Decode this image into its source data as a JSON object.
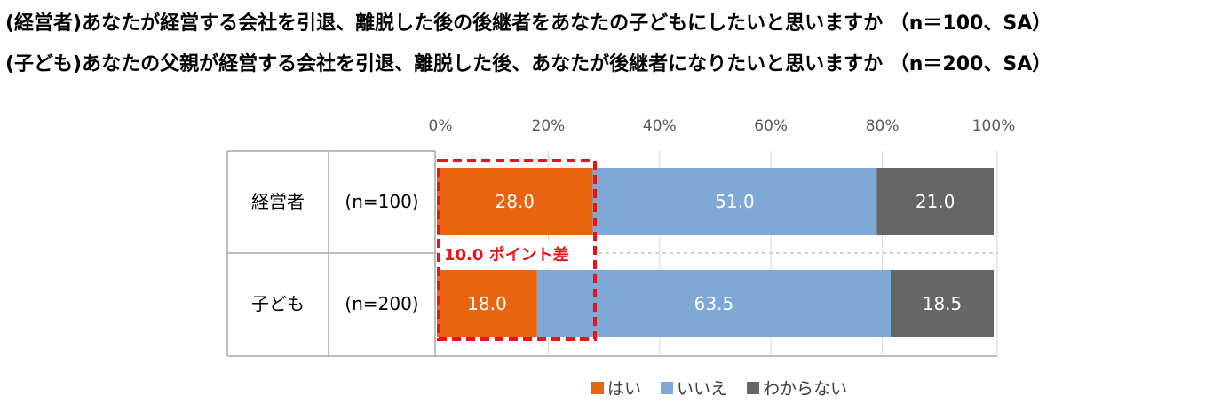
{
  "titles": [
    "(経営者)あなたが経営する会社を引退、離脱した後の後継者をあなたの子どもにしたいと思いますか （n＝100、SA）",
    "(子ども)あなたの父親が経営する会社を引退、離脱した後、あなたが後継者になりたいと思いますか （n＝200、SA）"
  ],
  "annotation": "10.0 ポイント差",
  "colors": {
    "はい": "#e8640f",
    "いいえ": "#7ea9d6",
    "わからない": "#666666",
    "annotation": "#e8141a"
  },
  "chart_data": {
    "type": "bar",
    "orientation": "horizontal",
    "stacked": true,
    "percent": true,
    "xlim": [
      0,
      100
    ],
    "xticks": [
      "0%",
      "20%",
      "40%",
      "60%",
      "80%",
      "100%"
    ],
    "categories": [
      {
        "label": "経営者",
        "n": "(n=100)"
      },
      {
        "label": "子ども",
        "n": "(n=200)"
      }
    ],
    "series": [
      {
        "name": "はい",
        "values": [
          28.0,
          18.0
        ],
        "labels": [
          "28.0",
          "18.0"
        ]
      },
      {
        "name": "いいえ",
        "values": [
          51.0,
          63.5
        ],
        "labels": [
          "51.0",
          "63.5"
        ]
      },
      {
        "name": "わからない",
        "values": [
          21.0,
          18.5
        ],
        "labels": [
          "21.0",
          "18.5"
        ]
      }
    ],
    "legend_position": "bottom"
  }
}
